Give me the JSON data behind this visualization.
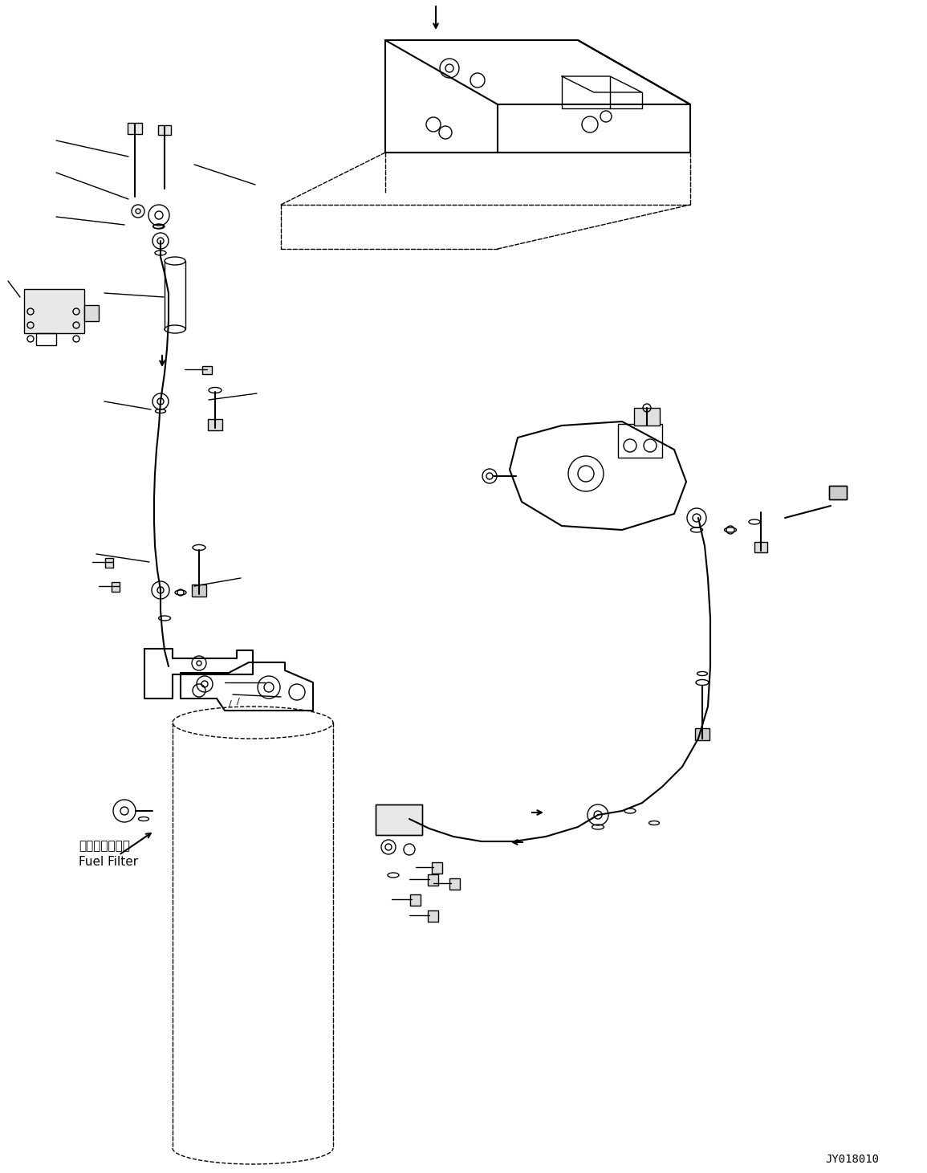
{
  "bg_color": "#ffffff",
  "line_color": "#000000",
  "fig_width": 11.55,
  "fig_height": 14.61,
  "dpi": 100,
  "watermark": "JY018010",
  "label_fuel_filter_jp": "フェルフィルタ",
  "label_fuel_filter_en": "Fuel Filter"
}
